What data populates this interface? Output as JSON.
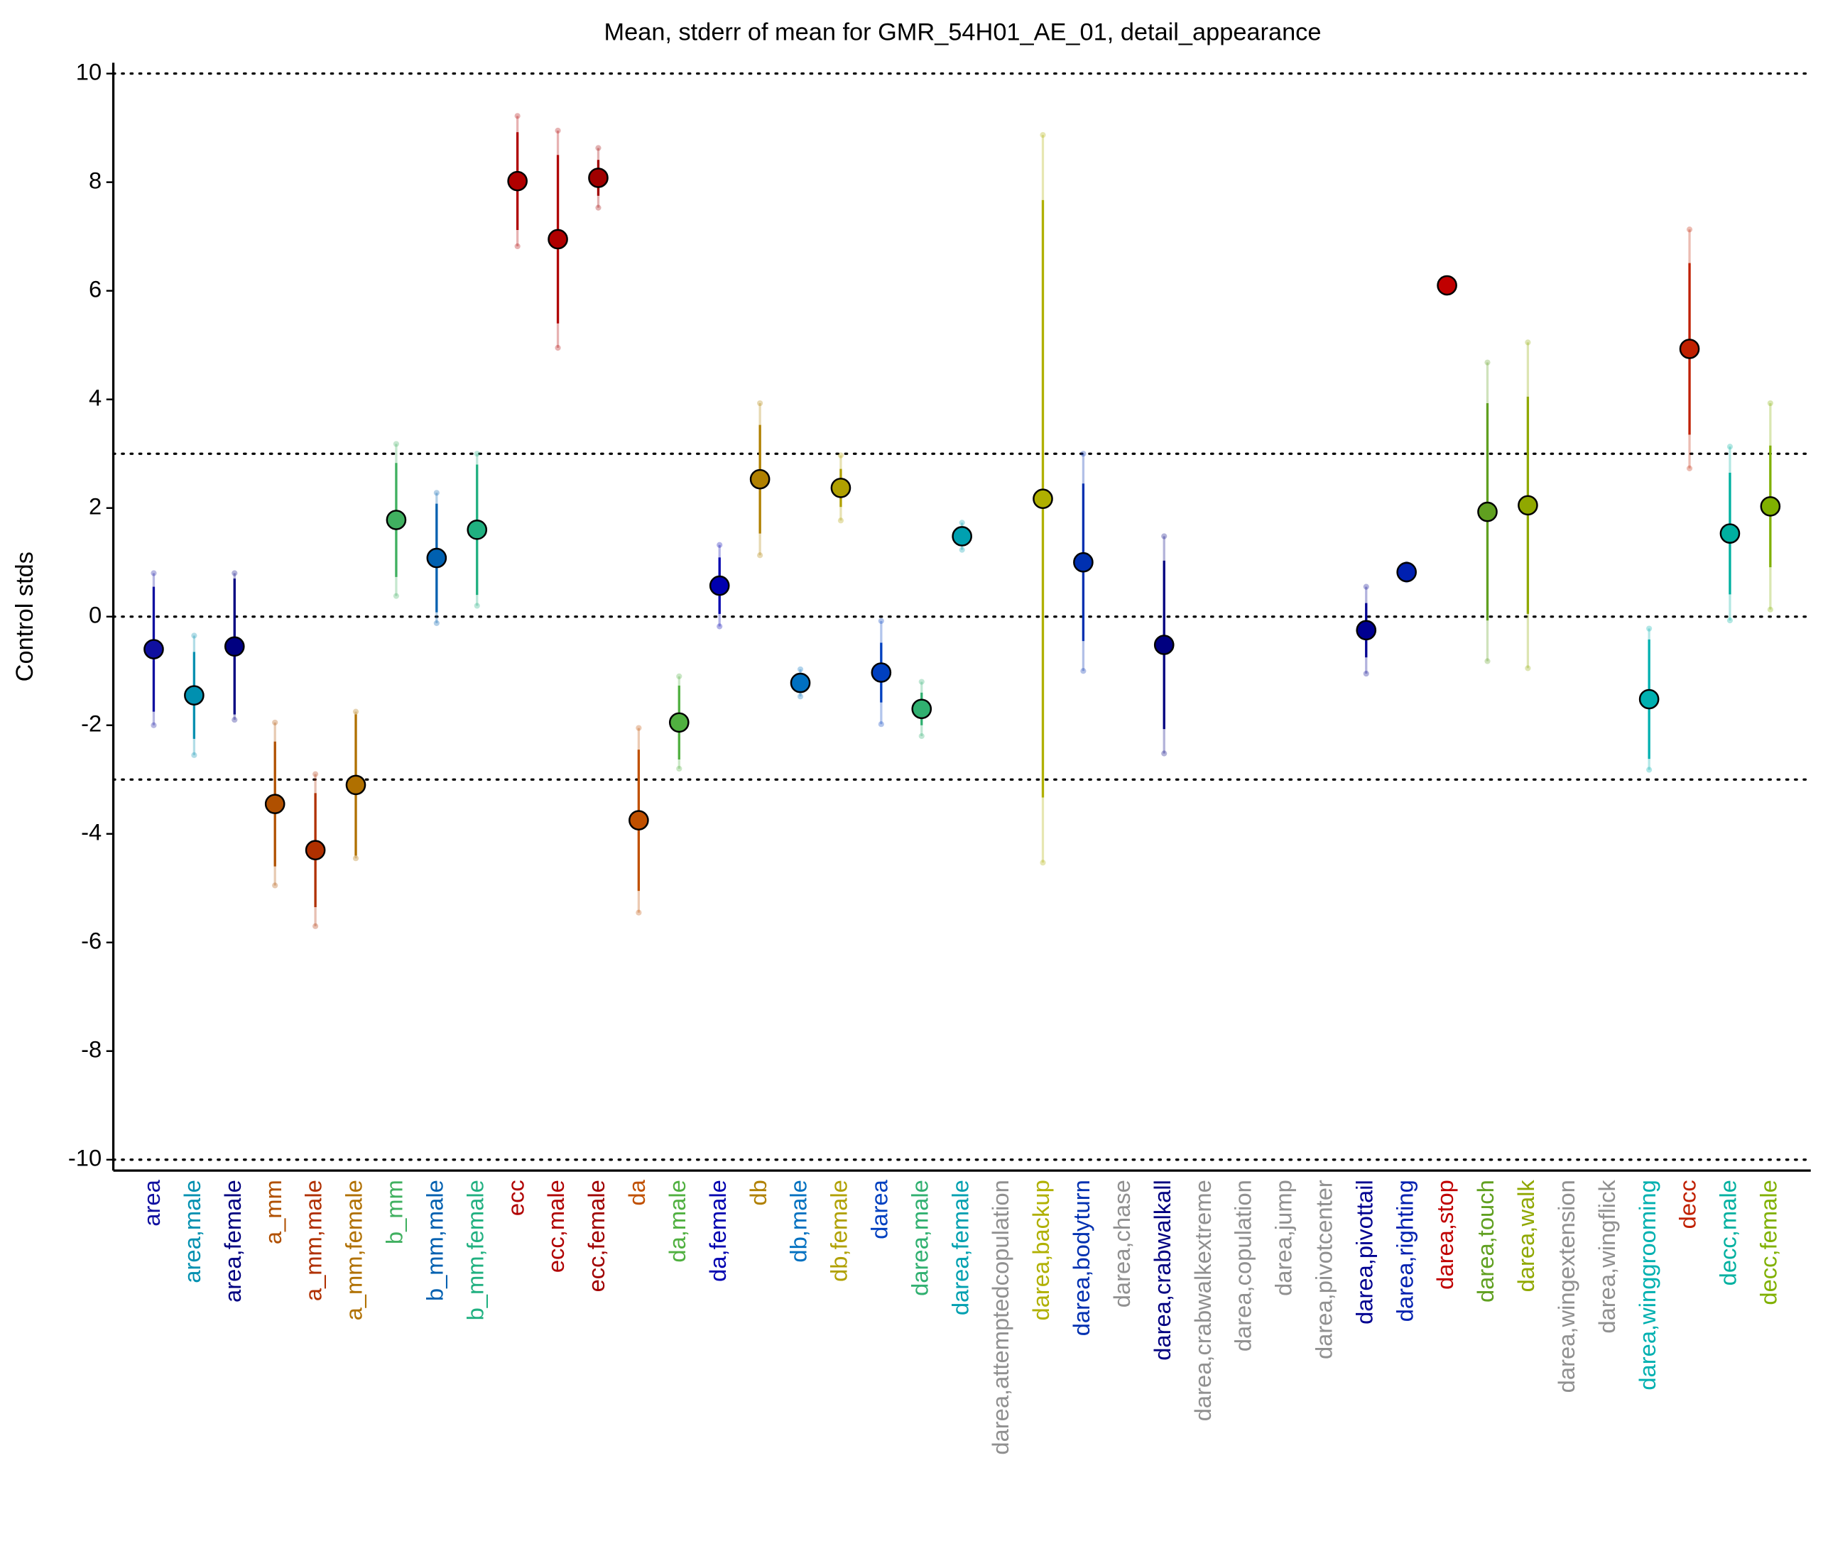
{
  "chart_data": {
    "type": "errorbar",
    "title": "Mean, stderr of mean for GMR_54H01_AE_01, detail_appearance",
    "ylabel": "Control stds",
    "categories": [
      "area",
      "area,male",
      "area,female",
      "a_mm",
      "a_mm,male",
      "a_mm,female",
      "b_mm",
      "b_mm,male",
      "b_mm,female",
      "ecc",
      "ecc,male",
      "ecc,female",
      "da",
      "da,male",
      "da,female",
      "db",
      "db,male",
      "db,female",
      "darea",
      "darea,male",
      "darea,female",
      "darea,attemptedcopulation",
      "darea,backup",
      "darea,bodyturn",
      "darea,chase",
      "darea,crabwalkall",
      "darea,crabwalkextreme",
      "darea,copulation",
      "darea,jump",
      "darea,pivotcenter",
      "darea,pivottail",
      "darea,righting",
      "darea,stop",
      "darea,touch",
      "darea,walk",
      "darea,wingextension",
      "darea,wingflick",
      "darea,winggrooming",
      "decc",
      "decc,male",
      "decc,female"
    ],
    "values": [
      -0.6,
      -1.45,
      -0.55,
      -3.45,
      -4.3,
      -3.1,
      1.78,
      1.08,
      1.6,
      8.02,
      6.95,
      8.08,
      -3.75,
      -1.95,
      0.57,
      2.53,
      -1.22,
      2.37,
      -1.03,
      -1.7,
      1.48,
      null,
      2.17,
      1.0,
      null,
      -0.52,
      null,
      null,
      null,
      null,
      -0.25,
      0.82,
      6.1,
      1.93,
      2.05,
      null,
      null,
      -1.52,
      4.93,
      1.53,
      2.03
    ],
    "errors": [
      1.15,
      0.8,
      1.25,
      1.15,
      1.05,
      1.3,
      1.05,
      1.0,
      1.2,
      0.9,
      1.55,
      0.33,
      1.3,
      0.68,
      0.52,
      1.0,
      0.15,
      0.35,
      0.55,
      0.3,
      0.15,
      null,
      5.5,
      1.45,
      null,
      1.55,
      null,
      null,
      null,
      null,
      0.5,
      0.1,
      0.05,
      2.0,
      2.0,
      null,
      null,
      1.1,
      1.58,
      1.12,
      1.12
    ],
    "spread": [
      1.4,
      1.1,
      1.35,
      1.5,
      1.4,
      1.35,
      1.4,
      1.2,
      1.4,
      1.2,
      2.0,
      0.55,
      1.7,
      0.85,
      0.75,
      1.4,
      0.25,
      0.6,
      0.95,
      0.5,
      0.25,
      null,
      6.7,
      2.0,
      null,
      2.0,
      null,
      null,
      null,
      null,
      0.8,
      0.15,
      0.08,
      2.75,
      3.0,
      null,
      null,
      1.3,
      2.2,
      1.6,
      1.9
    ],
    "colors": [
      "#1010a0",
      "#0090b0",
      "#000080",
      "#b05000",
      "#b03000",
      "#b07000",
      "#40b060",
      "#0060b0",
      "#20b080",
      "#b00000",
      "#b00000",
      "#a00000",
      "#c05000",
      "#50b040",
      "#0000b0",
      "#b08000",
      "#0070c0",
      "#b0a000",
      "#0040c0",
      "#30b070",
      "#00a0b0",
      "#909090",
      "#b0b000",
      "#0030b0",
      "#909090",
      "#000080",
      "#909090",
      "#909090",
      "#909090",
      "#909090",
      "#000090",
      "#0020b0",
      "#c00000",
      "#60a020",
      "#90a800",
      "#909090",
      "#909090",
      "#00b0b0",
      "#c02000",
      "#00b0a0",
      "#80b000"
    ],
    "ylim": [
      -10.2,
      10.2
    ],
    "yticks": [
      -10,
      -8,
      -6,
      -4,
      -2,
      0,
      2,
      4,
      6,
      8,
      10
    ],
    "hlines": [
      -10,
      -3,
      0,
      3,
      10
    ]
  }
}
